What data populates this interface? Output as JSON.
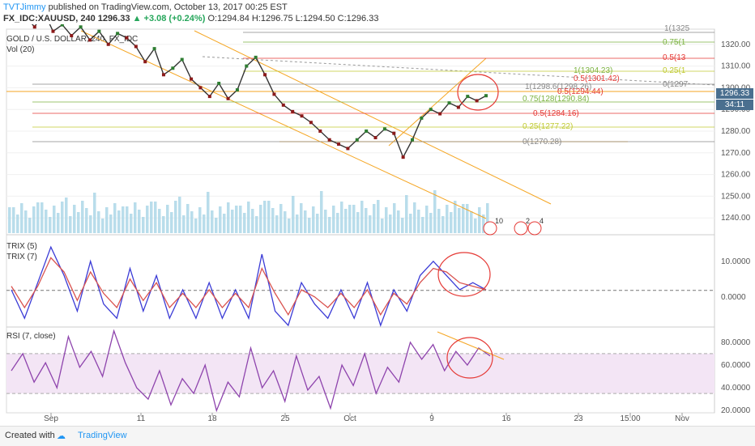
{
  "header": {
    "author": "TVTJimmy",
    "published": "published on TradingView.com, October 13, 2017 00:25 EST",
    "symbol": "FX_IDC:XAUUSD, 240",
    "last": "1296.33",
    "change": "▲ +3.08 (+0.24%)",
    "ohlc": "O:1294.84 H:1296.75 L:1294.50 C:1296.33"
  },
  "legend": {
    "main": "GOLD / U.S. DOLLAR, 240, FX_IDC",
    "vol": "Vol (20)",
    "trix5": "TRIX (5)",
    "trix7": "TRIX (7)",
    "rsi": "RSI (7, close)"
  },
  "price_tag": "1296.33",
  "time_tag": "34:11",
  "fib_labels": [
    {
      "text": "1(1325",
      "color": "#888888"
    },
    {
      "text": "0.75(1",
      "color": "#7cb342"
    },
    {
      "text": "0.5(13",
      "color": "#e53935"
    },
    {
      "text": "0.25(1",
      "color": "#c0ca33"
    },
    {
      "text": "0(1297",
      "color": "#888888"
    },
    {
      "text": "1(1304.23)",
      "color": "#7cb342"
    },
    {
      "text": "0.5(1301.42)",
      "color": "#e53935"
    },
    {
      "text": "1(1298.6(1298.26)",
      "color": "#888888"
    },
    {
      "text": "0.5(1294.44)",
      "color": "#e53935"
    },
    {
      "text": "0.75(128(1290.84)",
      "color": "#7cb342"
    },
    {
      "text": "0.5(1284.16)",
      "color": "#e53935"
    },
    {
      "text": "0.25(1277.22)",
      "color": "#c0ca33"
    },
    {
      "text": "0(1270.28)",
      "color": "#888888"
    }
  ],
  "event_badges": [
    "10",
    "2",
    "4"
  ],
  "chart_data": {
    "type": "line",
    "main": {
      "y_ticks": [
        "1320.00",
        "1310.00",
        "1300.00",
        "1290.00",
        "1280.00",
        "1270.00",
        "1260.00",
        "1250.00",
        "1240.00"
      ],
      "ylim": [
        1233,
        1327
      ],
      "close": [
        1330,
        1333,
        1328,
        1335,
        1326,
        1329,
        1324,
        1328,
        1322,
        1326,
        1320,
        1325,
        1323,
        1319,
        1312,
        1318,
        1306,
        1309,
        1313,
        1304,
        1300,
        1296,
        1302,
        1295,
        1299,
        1310,
        1314,
        1306,
        1297,
        1292,
        1289,
        1287,
        1284,
        1280,
        1276,
        1274,
        1272,
        1276,
        1280,
        1277,
        1281,
        1279,
        1268,
        1276,
        1286,
        1290,
        1288,
        1293,
        1291,
        1296,
        1294,
        1296.33
      ]
    },
    "trix": {
      "y_ticks": [
        "10.0000",
        "0.0000"
      ],
      "ylim": [
        -8,
        17
      ],
      "trix5": [
        2,
        -6,
        4,
        14,
        6,
        -4,
        10,
        -2,
        -6,
        8,
        -4,
        6,
        -6,
        2,
        -6,
        4,
        -6,
        2,
        -6,
        12,
        -4,
        -8,
        4,
        -2,
        -6,
        2,
        -6,
        4,
        -8,
        2,
        -4,
        6,
        10,
        6,
        2,
        4,
        2
      ],
      "trix7": [
        3,
        -3,
        3,
        11,
        7,
        -1,
        7,
        1,
        -3,
        5,
        -1,
        4,
        -3,
        1,
        -3,
        2,
        -3,
        1,
        -3,
        8,
        1,
        -5,
        2,
        0,
        -3,
        1,
        -3,
        2,
        -5,
        1,
        -2,
        4,
        8,
        7,
        4,
        3,
        2
      ]
    },
    "rsi": {
      "y_ticks": [
        "80.0000",
        "60.0000",
        "40.0000",
        "20.0000"
      ],
      "ylim": [
        18,
        92
      ],
      "band": [
        35,
        70
      ],
      "values": [
        55,
        70,
        45,
        62,
        40,
        85,
        58,
        72,
        50,
        90,
        62,
        40,
        30,
        55,
        25,
        48,
        35,
        60,
        20,
        45,
        32,
        75,
        40,
        55,
        28,
        68,
        38,
        50,
        22,
        60,
        42,
        70,
        35,
        58,
        45,
        80,
        65,
        78,
        55,
        72,
        60,
        75,
        68
      ]
    },
    "x_ticks": [
      "Sep",
      "11",
      "18",
      "25",
      "Oct",
      "9",
      "16",
      "23",
      "15:00",
      "Nov"
    ]
  },
  "footer": {
    "created": "Created with",
    "brand": "TradingView"
  }
}
